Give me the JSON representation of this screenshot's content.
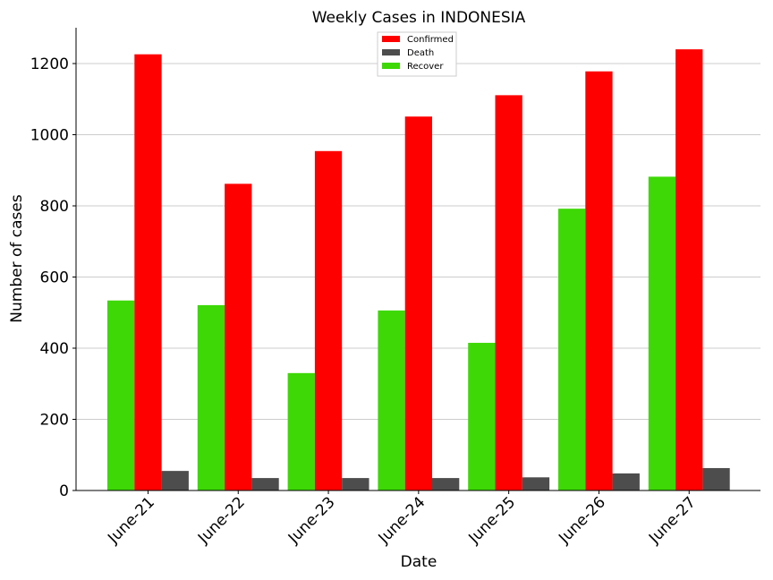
{
  "chart_data": {
    "type": "bar",
    "title": "Weekly Cases in INDONESIA",
    "xlabel": "Date",
    "ylabel": "Number of cases",
    "categories": [
      "June-21",
      "June-22",
      "June-23",
      "June-24",
      "June-25",
      "June-26",
      "June-27"
    ],
    "series": [
      {
        "name": "Recover",
        "color": "#3dd806",
        "values": [
          534,
          521,
          330,
          506,
          415,
          792,
          882
        ]
      },
      {
        "name": "Confirmed",
        "color": "#ff0000",
        "values": [
          1226,
          862,
          954,
          1051,
          1111,
          1178,
          1240
        ]
      },
      {
        "name": "Death",
        "color": "#4d4d4d",
        "values": [
          55,
          35,
          35,
          35,
          37,
          48,
          63
        ]
      }
    ],
    "legend_order": [
      "Confirmed",
      "Death",
      "Recover"
    ],
    "ylim": [
      0,
      1300
    ],
    "yticks": [
      0,
      200,
      400,
      600,
      800,
      1000,
      1200
    ],
    "grid": "horizontal",
    "legend_position": "top-center"
  }
}
